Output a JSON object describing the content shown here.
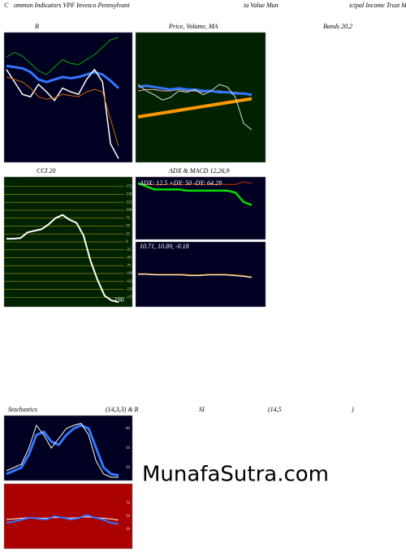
{
  "captions": [
    "C",
    "ommon  Indicators VPF Invesco  Pennsylvani",
    "ia  Value   Mun",
    "icipal Income   Trust Muni",
    "B",
    "Price, Volume, MA",
    "Bands 20,2",
    "CCI 20",
    "ADX  & MACD 12,26,9",
    "Stochastics",
    "(14,3,3) & R",
    "SI",
    "(14,5",
    ")"
  ],
  "watermark": "MunafaSutra.com",
  "chart_data": [
    {
      "type": "line",
      "background": "#000022",
      "ylim": [
        -5,
        100
      ],
      "series": [
        {
          "color": "#00aa00",
          "width": 1,
          "values": [
            80,
            84,
            81,
            75,
            69,
            66,
            72,
            78,
            75,
            74,
            78,
            82,
            88,
            94,
            96
          ]
        },
        {
          "color": "#3377ff",
          "width": 3,
          "values": [
            73,
            72,
            71,
            68,
            62,
            60,
            62,
            64,
            63,
            64,
            66,
            68,
            66,
            61,
            55
          ]
        },
        {
          "color": "#ffffff",
          "width": 1.5,
          "values": [
            70,
            60,
            50,
            48,
            58,
            52,
            45,
            55,
            52,
            50,
            62,
            70,
            60,
            10,
            -2
          ]
        },
        {
          "color": "#cc6600",
          "width": 1,
          "values": [
            64,
            62,
            60,
            55,
            48,
            46,
            47,
            50,
            49,
            48,
            52,
            54,
            52,
            30,
            8
          ]
        }
      ]
    },
    {
      "type": "line",
      "background": "#002200",
      "ylim": [
        0,
        100
      ],
      "series": [
        {
          "color": "#ffaaaa",
          "width": 1,
          "values": [
            55,
            56,
            56,
            55,
            55,
            56,
            55,
            55,
            54,
            55,
            55,
            54,
            54,
            53,
            52
          ]
        },
        {
          "color": "#3377ff",
          "width": 3,
          "values": [
            58,
            59,
            58,
            57,
            56,
            57,
            56,
            56,
            55,
            55,
            54,
            54,
            53,
            53,
            52
          ]
        },
        {
          "color": "#ff9900",
          "width": 4,
          "values": [
            35,
            36,
            37,
            38,
            39,
            40,
            41,
            42,
            43,
            44,
            45,
            46,
            47,
            48,
            49
          ]
        },
        {
          "color": "#dddddd",
          "width": 1,
          "values": [
            60,
            55,
            52,
            48,
            50,
            55,
            54,
            56,
            52,
            55,
            60,
            58,
            50,
            30,
            25
          ]
        }
      ]
    },
    {
      "type": "line",
      "background": "#002200",
      "ylim": [
        -205,
        205
      ],
      "grid": true,
      "yticks": [
        175,
        150,
        125,
        100,
        75,
        50,
        25,
        0,
        -25,
        -50,
        -75,
        -100,
        -125,
        -150,
        -175
      ],
      "annotations": [
        "-190"
      ],
      "series": [
        {
          "color": "#ffffff",
          "width": 2,
          "values": [
            10,
            10,
            12,
            30,
            35,
            40,
            55,
            75,
            85,
            70,
            60,
            20,
            -60,
            -120,
            -170,
            -185,
            -190
          ]
        }
      ]
    },
    {
      "type": "line",
      "background": "#000022",
      "ylim": [
        0,
        100
      ],
      "annotations": [
        "ADX: 12.5 +DY: 50 -DY: 64.29"
      ],
      "series": [
        {
          "color": "#cc3300",
          "width": 1,
          "values": [
            88,
            88,
            88,
            88,
            88,
            88,
            88,
            88,
            88,
            88,
            88,
            88,
            88,
            92,
            90
          ]
        },
        {
          "color": "#00dd00",
          "width": 2.5,
          "values": [
            90,
            85,
            80,
            80,
            80,
            80,
            78,
            78,
            78,
            78,
            78,
            78,
            75,
            60,
            55
          ]
        }
      ]
    },
    {
      "type": "line",
      "background": "#000022",
      "ylim": [
        0,
        100
      ],
      "annotations": [
        "10.71, 10.89, -0.18"
      ],
      "series": [
        {
          "color": "#ff9900",
          "width": 1,
          "values": [
            51,
            51,
            50,
            50,
            50,
            50,
            49,
            49,
            50,
            50,
            50,
            49,
            48,
            46
          ]
        },
        {
          "color": "#ffffff",
          "width": 1,
          "values": [
            50,
            50,
            49,
            49,
            49,
            49,
            48,
            48,
            49,
            49,
            49,
            48,
            47,
            45
          ]
        }
      ]
    },
    {
      "type": "line",
      "background": "#000022",
      "ylim": [
        0,
        100
      ],
      "yticks": [
        80,
        50,
        20
      ],
      "series": [
        {
          "color": "#3377ff",
          "width": 3,
          "values": [
            10,
            15,
            20,
            40,
            70,
            75,
            60,
            55,
            70,
            80,
            85,
            80,
            50,
            20,
            10,
            8
          ]
        },
        {
          "color": "#ffffff",
          "width": 1,
          "values": [
            15,
            20,
            25,
            50,
            85,
            70,
            50,
            65,
            80,
            85,
            88,
            70,
            30,
            10,
            5,
            5
          ]
        }
      ]
    },
    {
      "type": "line",
      "background": "#aa0000",
      "ylim": [
        0,
        100
      ],
      "yticks": [
        70,
        50,
        30
      ],
      "series": [
        {
          "color": "#ffffff",
          "width": 1,
          "values": [
            45,
            46,
            47,
            48,
            47,
            47,
            48,
            48,
            47,
            48,
            49,
            48,
            47,
            46,
            44
          ]
        },
        {
          "color": "#3377ff",
          "width": 2,
          "values": [
            40,
            42,
            45,
            48,
            46,
            45,
            50,
            48,
            45,
            47,
            52,
            48,
            45,
            40,
            38
          ]
        }
      ]
    }
  ]
}
